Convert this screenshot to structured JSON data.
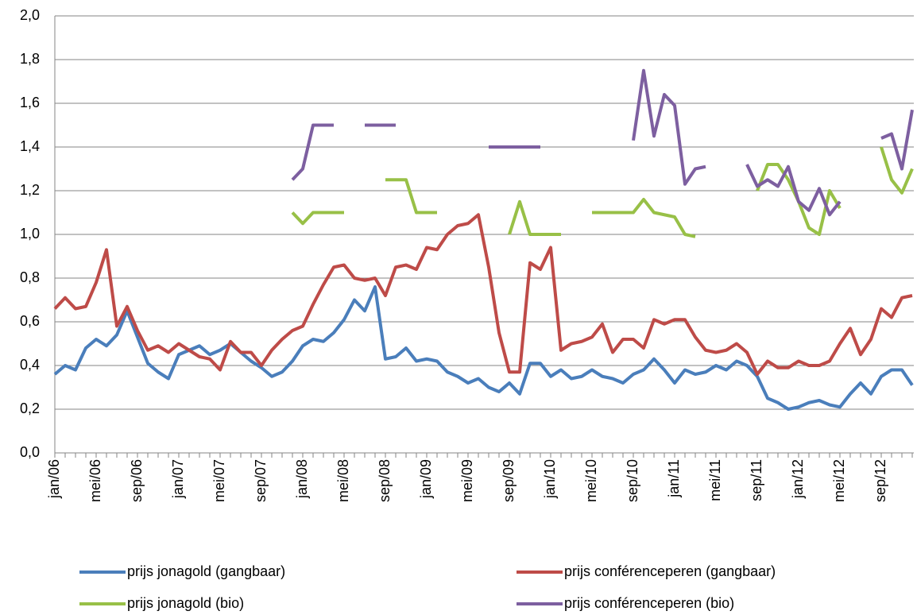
{
  "chart_data": {
    "type": "line",
    "categories": [
      "jan/06",
      null,
      null,
      null,
      "mei/06",
      null,
      null,
      null,
      "sep/06",
      null,
      null,
      null,
      "jan/07",
      null,
      null,
      null,
      "mei/07",
      null,
      null,
      null,
      "sep/07",
      null,
      null,
      null,
      "jan/08",
      null,
      null,
      null,
      "mei/08",
      null,
      null,
      null,
      "sep/08",
      null,
      null,
      null,
      "jan/09",
      null,
      null,
      null,
      "mei/09",
      null,
      null,
      null,
      "sep/09",
      null,
      null,
      null,
      "jan/10",
      null,
      null,
      null,
      "mei/10",
      null,
      null,
      null,
      "sep/10",
      null,
      null,
      null,
      "jan/11",
      null,
      null,
      null,
      "mei/11",
      null,
      null,
      null,
      "sep/11",
      null,
      null,
      null,
      "jan/12",
      null,
      null,
      null,
      "mei/12",
      null,
      null,
      null,
      "sep/12",
      null,
      null,
      null
    ],
    "series": [
      {
        "name": "prijs jonagold (gangbaar)",
        "color": "#4a7ebb",
        "values": [
          0.36,
          0.4,
          0.38,
          0.48,
          0.52,
          0.49,
          0.54,
          0.65,
          0.53,
          0.41,
          0.37,
          0.34,
          0.45,
          0.47,
          0.49,
          0.45,
          0.47,
          0.5,
          0.46,
          0.42,
          0.39,
          0.35,
          0.37,
          0.42,
          0.49,
          0.52,
          0.51,
          0.55,
          0.61,
          0.7,
          0.65,
          0.76,
          0.43,
          0.44,
          0.48,
          0.42,
          0.43,
          0.42,
          0.37,
          0.35,
          0.32,
          0.34,
          0.3,
          0.28,
          0.32,
          0.27,
          0.41,
          0.41,
          0.35,
          0.38,
          0.34,
          0.35,
          0.38,
          0.35,
          0.34,
          0.32,
          0.36,
          0.38,
          0.43,
          0.38,
          0.32,
          0.38,
          0.36,
          0.37,
          0.4,
          0.38,
          0.42,
          0.4,
          0.35,
          0.25,
          0.23,
          0.2,
          0.21,
          0.23,
          0.24,
          0.22,
          0.21,
          0.27,
          0.32,
          0.27,
          0.35,
          0.38,
          0.38,
          0.31
        ]
      },
      {
        "name": "prijs conférenceperen (gangbaar)",
        "color": "#be4b48",
        "values": [
          0.66,
          0.71,
          0.66,
          0.67,
          0.78,
          0.93,
          0.58,
          0.67,
          0.56,
          0.47,
          0.49,
          0.46,
          0.5,
          0.47,
          0.44,
          0.43,
          0.38,
          0.51,
          0.46,
          0.46,
          0.4,
          0.47,
          0.52,
          0.56,
          0.58,
          0.68,
          0.77,
          0.85,
          0.86,
          0.8,
          0.79,
          0.8,
          0.72,
          0.85,
          0.86,
          0.84,
          0.94,
          0.93,
          1.0,
          1.04,
          1.05,
          1.09,
          0.85,
          0.55,
          0.37,
          0.37,
          0.87,
          0.84,
          0.94,
          0.47,
          0.5,
          0.51,
          0.53,
          0.59,
          0.46,
          0.52,
          0.52,
          0.48,
          0.61,
          0.59,
          0.61,
          0.61,
          0.53,
          0.47,
          0.46,
          0.47,
          0.5,
          0.46,
          0.36,
          0.42,
          0.39,
          0.39,
          0.42,
          0.4,
          0.4,
          0.42,
          0.5,
          0.57,
          0.45,
          0.52,
          0.66,
          0.62,
          0.71,
          0.72
        ]
      },
      {
        "name": "prijs jonagold (bio)",
        "color": "#98c047",
        "values": [
          null,
          null,
          null,
          null,
          null,
          null,
          null,
          null,
          null,
          null,
          null,
          null,
          null,
          null,
          null,
          null,
          null,
          null,
          null,
          null,
          null,
          null,
          null,
          1.1,
          1.05,
          1.1,
          1.1,
          1.1,
          1.1,
          null,
          null,
          null,
          1.25,
          1.25,
          1.25,
          1.1,
          1.1,
          1.1,
          null,
          null,
          null,
          null,
          null,
          null,
          1.0,
          1.15,
          1.0,
          1.0,
          1.0,
          1.0,
          null,
          null,
          1.1,
          1.1,
          1.1,
          1.1,
          1.1,
          1.16,
          1.1,
          1.09,
          1.08,
          1.0,
          0.99,
          null,
          null,
          null,
          null,
          null,
          1.2,
          1.32,
          1.32,
          1.25,
          1.15,
          1.03,
          1.0,
          1.2,
          1.12,
          null,
          null,
          null,
          1.4,
          1.25,
          1.19,
          1.3
        ]
      },
      {
        "name": "prijs conférenceperen (bio)",
        "color": "#7d5fa0",
        "values": [
          null,
          null,
          null,
          null,
          null,
          null,
          null,
          null,
          null,
          null,
          null,
          null,
          null,
          null,
          null,
          null,
          null,
          null,
          null,
          null,
          null,
          null,
          null,
          1.25,
          1.3,
          1.5,
          1.5,
          1.5,
          null,
          null,
          1.5,
          1.5,
          1.5,
          1.5,
          null,
          null,
          null,
          null,
          null,
          null,
          null,
          null,
          1.4,
          1.4,
          1.4,
          1.4,
          1.4,
          1.4,
          null,
          null,
          null,
          null,
          null,
          null,
          null,
          null,
          1.43,
          1.75,
          1.45,
          1.64,
          1.59,
          1.23,
          1.3,
          1.31,
          null,
          null,
          null,
          1.32,
          1.22,
          1.25,
          1.22,
          1.31,
          1.15,
          1.11,
          1.21,
          1.09,
          1.15,
          null,
          null,
          null,
          1.44,
          1.46,
          1.3,
          1.57
        ]
      }
    ],
    "ylim": [
      0,
      2
    ],
    "yticks": [
      {
        "value": 0,
        "label": "0,0"
      },
      {
        "value": 0.2,
        "label": "0,2"
      },
      {
        "value": 0.4,
        "label": "0,4"
      },
      {
        "value": 0.6,
        "label": "0,6"
      },
      {
        "value": 0.8,
        "label": "0,8"
      },
      {
        "value": 1,
        "label": "1,0"
      },
      {
        "value": 1.2,
        "label": "1,2"
      },
      {
        "value": 1.4,
        "label": "1,4"
      },
      {
        "value": 1.6,
        "label": "1,6"
      },
      {
        "value": 1.8,
        "label": "1,8"
      },
      {
        "value": 2,
        "label": "2,0"
      }
    ],
    "grid": true
  }
}
